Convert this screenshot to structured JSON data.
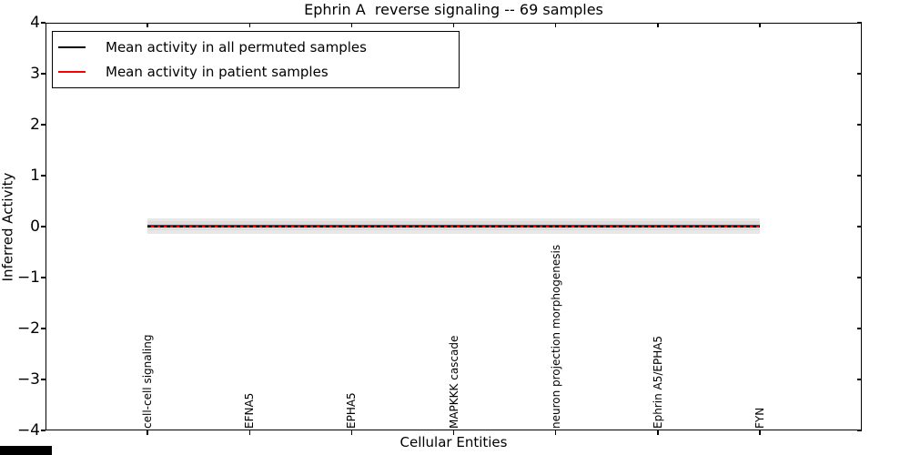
{
  "chart_data": {
    "type": "line",
    "title": "Ephrin A  reverse signaling -- 69 samples",
    "xlabel": "Cellular Entities",
    "ylabel": "Inferred Activity",
    "xlim": [
      -1,
      7
    ],
    "ylim": [
      -4,
      4
    ],
    "grid": false,
    "frame_color": "#000000",
    "yticks": [
      {
        "v": 4,
        "label": "4"
      },
      {
        "v": 3,
        "label": "3"
      },
      {
        "v": 2,
        "label": "2"
      },
      {
        "v": 1,
        "label": "1"
      },
      {
        "v": 0,
        "label": "0"
      },
      {
        "v": -1,
        "label": "−1"
      },
      {
        "v": -2,
        "label": "−2"
      },
      {
        "v": -3,
        "label": "−3"
      },
      {
        "v": -4,
        "label": "−4"
      }
    ],
    "categories": [
      "cell-cell signaling",
      "EFNA5",
      "EPHA5",
      "MAPKKK cascade",
      "neuron projection morphogenesis",
      "Ephrin A5/EPHA5",
      "FYN"
    ],
    "x_positions": [
      0,
      1,
      2,
      3,
      4,
      5,
      6
    ],
    "x_range": [
      0,
      6
    ],
    "bands": [
      {
        "name": "permutation-envelope-outer",
        "color": "#e7e7e7",
        "upper": 0.16,
        "lower": -0.14
      },
      {
        "name": "permutation-envelope-inner",
        "color": "#dddddd",
        "upper": 0.1,
        "lower": -0.08
      }
    ],
    "series": [
      {
        "name": "Mean activity in all permuted samples",
        "color": "#000000",
        "line_style": "dashed",
        "values": [
          0.0,
          0.0,
          0.0,
          0.0,
          0.0,
          0.0,
          0.0
        ]
      },
      {
        "name": "Mean activity in patient samples",
        "color": "#ff0000",
        "line_style": "solid",
        "values": [
          0.02,
          0.02,
          0.01,
          0.01,
          0.01,
          0.01,
          0.02
        ]
      }
    ],
    "legend": {
      "position": "upper left",
      "entries": [
        {
          "label": "Mean activity in all permuted samples",
          "color": "#000000"
        },
        {
          "label": "Mean activity in patient samples",
          "color": "#ff0000"
        }
      ]
    }
  },
  "screen": {
    "bottom_left_bar_color": "#000000"
  }
}
